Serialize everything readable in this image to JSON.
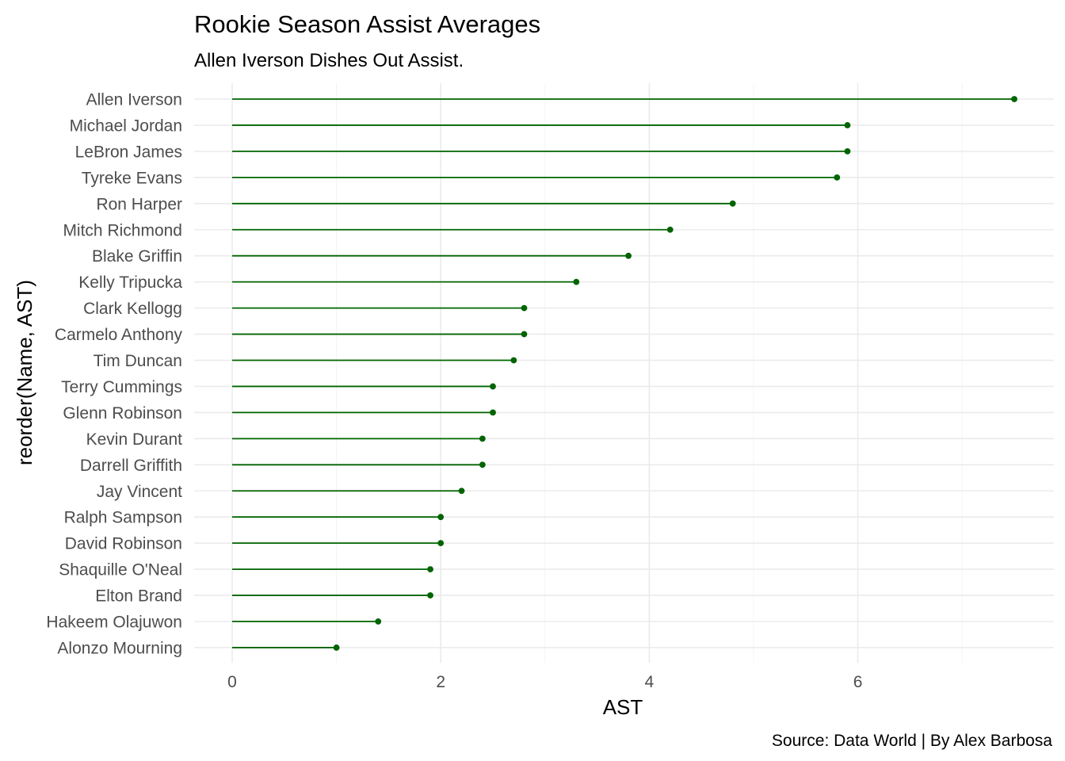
{
  "chart_data": {
    "type": "lollipop",
    "title": "Rookie Season Assist Averages",
    "subtitle": "Allen Iverson Dishes Out Assist.",
    "xlabel": "AST",
    "ylabel": "reorder(Name, AST)",
    "caption": "Source: Data World | By Alex Barbosa",
    "xlim": [
      0,
      7.5
    ],
    "x_ticks": [
      0,
      2,
      4,
      6
    ],
    "x_tick_labels": [
      "0",
      "2",
      "4",
      "6"
    ],
    "grid": true,
    "legend": "none",
    "color": "#006400",
    "categories": [
      "Allen Iverson",
      "Michael Jordan",
      "LeBron James",
      "Tyreke Evans",
      "Ron Harper",
      "Mitch Richmond",
      "Blake Griffin",
      "Kelly Tripucka",
      "Clark Kellogg",
      "Carmelo Anthony",
      "Tim Duncan",
      "Terry Cummings",
      "Glenn Robinson",
      "Kevin Durant",
      "Darrell Griffith",
      "Jay Vincent",
      "Ralph Sampson",
      "David Robinson",
      "Shaquille O'Neal",
      "Elton Brand",
      "Hakeem Olajuwon",
      "Alonzo Mourning"
    ],
    "values": [
      7.5,
      5.9,
      5.9,
      5.8,
      4.8,
      4.2,
      3.8,
      3.3,
      2.8,
      2.8,
      2.7,
      2.5,
      2.5,
      2.4,
      2.4,
      2.2,
      2.0,
      2.0,
      1.9,
      1.9,
      1.4,
      1.0
    ]
  }
}
